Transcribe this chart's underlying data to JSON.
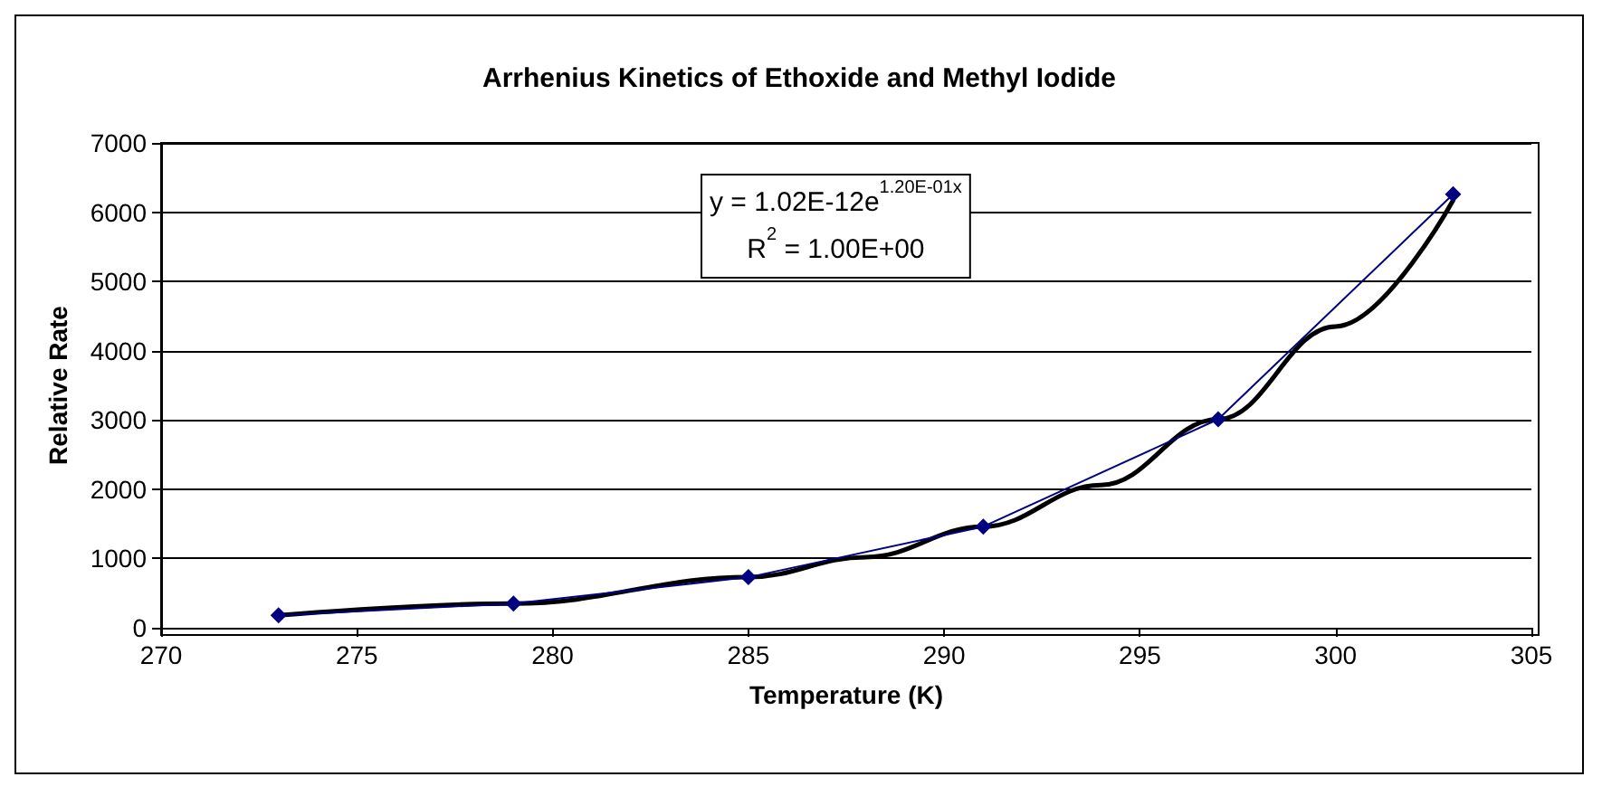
{
  "chart_data": {
    "type": "line",
    "title": "Arrhenius Kinetics of Ethoxide and Methyl Iodide",
    "xlabel": "Temperature (K)",
    "ylabel": "Relative Rate",
    "x": [
      273,
      279,
      285,
      291,
      297,
      303
    ],
    "series": [
      {
        "color": "#000080",
        "values": [
          180,
          350,
          730,
          1460,
          3010,
          6260
        ],
        "marker": "diamond"
      },
      {
        "type": "line",
        "color": "#000000",
        "x": [
          273,
          279,
          285,
          288,
          291,
          294,
          297,
          300,
          303
        ],
        "values": [
          180,
          350,
          730,
          1020,
          1460,
          2060,
          3010,
          4350,
          6170
        ],
        "marker": "none"
      }
    ],
    "annotations": [
      "y = 1.02E-12e$^{1.20E-01x}$",
      "R$^{2}$ = 1.00E+00"
    ],
    "xlim": [
      270,
      305
    ],
    "xticks": [
      270,
      275,
      280,
      285,
      290,
      295,
      300,
      305
    ],
    "ylim": [
      0,
      7000
    ],
    "yticks": [
      0,
      1000,
      2000,
      3000,
      4000,
      5000,
      6000,
      7000
    ],
    "grid": "y"
  }
}
